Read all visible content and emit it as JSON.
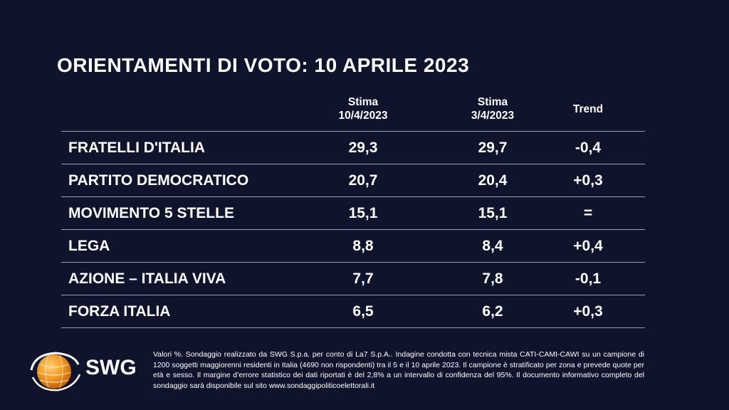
{
  "title": "ORIENTAMENTI DI VOTO: 10 APRILE 2023",
  "table": {
    "headers": {
      "col1": [
        "Stima",
        "10/4/2023"
      ],
      "col2": [
        "Stima",
        "3/4/2023"
      ],
      "col3": "Trend"
    },
    "rows": [
      {
        "party": "FRATELLI D'ITALIA",
        "v1": "29,3",
        "v2": "29,7",
        "trend": "-0,4"
      },
      {
        "party": "PARTITO DEMOCRATICO",
        "v1": "20,7",
        "v2": "20,4",
        "trend": "+0,3"
      },
      {
        "party": "MOVIMENTO 5 STELLE",
        "v1": "15,1",
        "v2": "15,1",
        "trend": "="
      },
      {
        "party": "LEGA",
        "v1": "8,8",
        "v2": "8,4",
        "trend": "+0,4"
      },
      {
        "party": "AZIONE – ITALIA VIVA",
        "v1": "7,7",
        "v2": "7,8",
        "trend": "-0,1"
      },
      {
        "party": "FORZA ITALIA",
        "v1": "6,5",
        "v2": "6,2",
        "trend": "+0,3"
      }
    ]
  },
  "logo": {
    "text": "SWG",
    "icon": "swg-globe-logo",
    "accent": "#f39a1e"
  },
  "footnote": "Valori %. Sondaggio realizzato da SWG S.p.a. per conto di La7 S.p.A.. Indagine condotta con tecnica mista CATI-CAMI-CAWI su un campione di 1200 soggetti maggiorenni residenti in Italia (4690 non rispondenti) tra il 5 e il 10 aprile 2023. Il campione è stratificato per zona e prevede quote per età e sesso. Il margine d’errore statistico dei dati riportati è del 2,8% a un intervallo di confidenza del 95%. Il documento informativo completo del sondaggio sarà disponibile sul sito www.sondaggipoliticoelettorali.it",
  "colors": {
    "background": "#10132c",
    "text": "#ffffff",
    "rule": "#9a9db0"
  }
}
